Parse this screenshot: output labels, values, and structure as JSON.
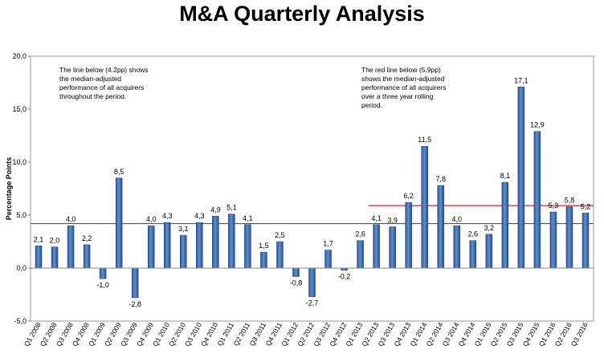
{
  "chart_data": {
    "type": "bar",
    "title": "M&A Quarterly Analysis",
    "ylabel": "Percentage Points",
    "xlabel": "",
    "ylim": [
      -5,
      20
    ],
    "yticks": [
      -5,
      0,
      5,
      10,
      15,
      20
    ],
    "ytick_labels": [
      "-5,0",
      "0,0",
      "5,0",
      "10,0",
      "15,0",
      "20,0"
    ],
    "grid": false,
    "bar_color": "#3a6fb5",
    "categories": [
      "Q1 2008",
      "Q2 2008",
      "Q3 2008",
      "Q4 2008",
      "Q1 2009",
      "Q2 2009",
      "Q3 2009",
      "Q4 2009",
      "Q1 2010",
      "Q2 2010",
      "Q3 2010",
      "Q4 2010",
      "Q1 2011",
      "Q2 2011",
      "Q3 2011",
      "Q4 2011",
      "Q1 2012",
      "Q2 2012",
      "Q3 2012",
      "Q4 2012",
      "Q1 2013",
      "Q2 2013",
      "Q3 2013",
      "Q4 2013",
      "Q1 2014",
      "Q2 2014",
      "Q3 2014",
      "Q4 2014",
      "Q1 2015",
      "Q2 2015",
      "Q3 2015",
      "Q4 2015",
      "Q1 2016",
      "Q2 2016",
      "Q3 2016"
    ],
    "values": [
      2.1,
      2.0,
      4.0,
      2.2,
      -1.0,
      8.5,
      -2.8,
      4.0,
      4.3,
      3.1,
      4.3,
      4.9,
      5.1,
      4.1,
      1.5,
      2.5,
      -0.8,
      -2.7,
      1.7,
      -0.2,
      2.6,
      4.1,
      3.9,
      6.2,
      11.5,
      7.8,
      4.0,
      2.6,
      3.2,
      8.1,
      17.1,
      12.9,
      5.3,
      5.8,
      5.2
    ],
    "value_labels": [
      "2,1",
      "2,0",
      "4,0",
      "2,2",
      "-1,0",
      "8,5",
      "-2,8",
      "4,0",
      "4,3",
      "3,1",
      "4,3",
      "4,9",
      "5,1",
      "4,1",
      "1,5",
      "2,5",
      "-0,8",
      "-2,7",
      "1,7",
      "-0,2",
      "2,6",
      "4,1",
      "3,9",
      "6,2",
      "11,5",
      "7,8",
      "4,0",
      "2,6",
      "3,2",
      "8,1",
      "17,1",
      "12,9",
      "5,3",
      "5,8",
      "5,2"
    ],
    "reference_lines": [
      {
        "value": 4.2,
        "color": "#555555",
        "from_category": "Q1 2008",
        "to_category": "Q3 2016"
      },
      {
        "value": 5.9,
        "color": "#e0202a",
        "from_category": "Q2 2013",
        "to_category": "Q3 2016"
      }
    ],
    "annotations": [
      {
        "lines": [
          "The line below (4.2pp) shows",
          "the median-adjusted",
          "performance of all acquirers",
          "throughout the period."
        ]
      },
      {
        "lines": [
          "The red line below (5.9pp)",
          "shows the median-adjusted",
          "performance of all acquirers",
          "over a three year rolling",
          "period."
        ]
      }
    ]
  }
}
